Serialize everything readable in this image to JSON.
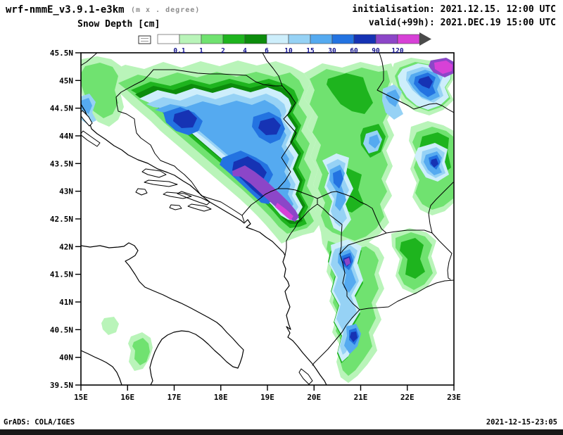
{
  "header": {
    "model": "wrf-nmmE_v3.9.1-e3km",
    "model_note": "(m x . degree)",
    "init": "initialisation: 2021.12.15.  12:00 UTC",
    "field_title": "Snow Depth [cm]",
    "valid": "valid(+99h): 2021.DEC.19 15:00 UTC"
  },
  "footer": {
    "left": "GrADS: COLA/IGES",
    "right": "2021-12-15-23:05"
  },
  "chart_data": {
    "type": "heatmap",
    "title": "Snow Depth [cm]",
    "region": "Adriatic / Balkans, 15E-23E, 39.5N-45.5N",
    "x_ticks": [
      "15E",
      "16E",
      "17E",
      "18E",
      "19E",
      "20E",
      "21E",
      "22E",
      "23E"
    ],
    "y_ticks": [
      "45.5N",
      "45N",
      "44.5N",
      "44N",
      "43.5N",
      "43N",
      "42.5N",
      "42N",
      "41.5N",
      "41N",
      "40.5N",
      "40N",
      "39.5N"
    ],
    "grid": "off",
    "legend": {
      "position": "top",
      "values": [
        "0.1",
        "1",
        "2",
        "4",
        "6",
        "10",
        "15",
        "30",
        "60",
        "90",
        "120"
      ],
      "band_colors": [
        "#ffffff",
        "#b9f4b9",
        "#70e270",
        "#1eb41e",
        "#0c8c0c",
        "#cdeefb",
        "#96d2f5",
        "#55aaf0",
        "#2373e1",
        "#1633b4",
        "#8c46c8",
        "#d741d7"
      ],
      "overflow_arrow_color": "#4a4a4a",
      "label_color": "#14148c"
    },
    "snow_areas": [
      {
        "area": "Dinaric Alps, central Bosnia-Montenegro ridge",
        "approx_lon": 18.7,
        "approx_lat": 43.1,
        "depth_band_cm": "90-120+"
      },
      {
        "area": "NW Bosnia / Lika highlands",
        "approx_lon": 16.7,
        "approx_lat": 44.4,
        "depth_band_cm": "60-90"
      },
      {
        "area": "Prokletije / Kosovo-Albania border band",
        "approx_lon": 20.5,
        "approx_lat": 42.3,
        "depth_band_cm": "60-120"
      },
      {
        "area": "Pindus range, SE Albania - NW Greece",
        "approx_lon": 20.6,
        "approx_lat": 40.2,
        "depth_band_cm": "30-90"
      },
      {
        "area": "Carpathian corner (top right)",
        "approx_lon": 22.7,
        "approx_lat": 45.3,
        "depth_band_cm": "120+"
      },
      {
        "area": "Stara Planina, Serbia-Bulgaria border",
        "approx_lon": 22.6,
        "approx_lat": 43.3,
        "depth_band_cm": "30-90"
      },
      {
        "area": "Velebit coast at west map edge",
        "approx_lon": 15.1,
        "approx_lat": 44.5,
        "depth_band_cm": "15-30"
      },
      {
        "area": "Southern Apennines, Italy",
        "approx_lon": 16.1,
        "approx_lat": 40.2,
        "depth_band_cm": "1-4"
      }
    ]
  }
}
